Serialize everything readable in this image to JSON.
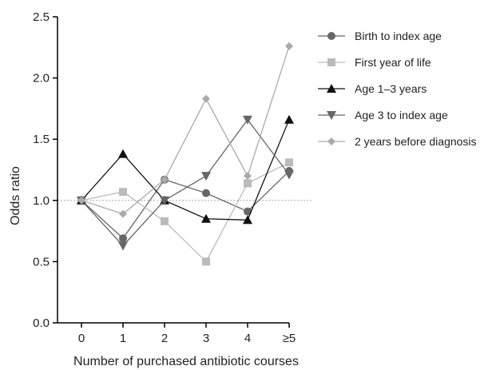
{
  "chart_data": {
    "type": "line",
    "categories": [
      "0",
      "1",
      "2",
      "3",
      "4",
      "≥5"
    ],
    "xlabel": "Number of purchased antibiotic courses",
    "ylabel": "Odds ratio",
    "ylim": [
      0,
      2.5
    ],
    "yticks": [
      "0.0",
      "0.5",
      "1.0",
      "1.5",
      "2.0",
      "2.5"
    ],
    "reference_line": 1.0,
    "grid": false,
    "legend_position": "right",
    "series": [
      {
        "name": "Birth to index age",
        "values": [
          1.0,
          0.69,
          1.17,
          1.06,
          0.91,
          1.24
        ],
        "color": "#666666",
        "marker": "circle"
      },
      {
        "name": "First year of life",
        "values": [
          1.0,
          1.07,
          0.83,
          0.5,
          1.14,
          1.31
        ],
        "color": "#bbbbbb",
        "marker": "square"
      },
      {
        "name": "Age 1–3 years",
        "values": [
          1.0,
          1.38,
          1.0,
          0.85,
          0.84,
          1.66
        ],
        "color": "#111111",
        "marker": "triangle-up"
      },
      {
        "name": "Age 3 to index age",
        "values": [
          1.0,
          0.63,
          1.0,
          1.2,
          1.66,
          1.21
        ],
        "color": "#666666",
        "marker": "triangle-down"
      },
      {
        "name": "2 years before diagnosis",
        "values": [
          1.0,
          0.89,
          1.17,
          1.83,
          1.2,
          2.26
        ],
        "color": "#aaaaaa",
        "marker": "diamond"
      }
    ]
  }
}
